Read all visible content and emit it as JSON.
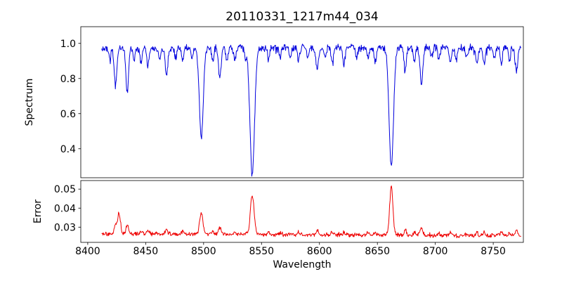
{
  "figure": {
    "title": "20110331_1217m44_034",
    "background": "#ffffff"
  },
  "chart_data": {
    "type": "line",
    "title": "20110331_1217m44_034",
    "xlabel": "Wavelength",
    "grid": false,
    "xlim": [
      8394,
      8776
    ],
    "x_range": [
      8412,
      8774
    ],
    "x_ticks": [
      8400,
      8450,
      8500,
      8550,
      8600,
      8650,
      8700,
      8750
    ],
    "x_tick_labels": [
      "8400",
      "8450",
      "8500",
      "8550",
      "8600",
      "8650",
      "8700",
      "8750"
    ],
    "panels": [
      {
        "name": "spectrum",
        "ylabel": "Spectrum",
        "color": "#0000dd",
        "ylim": [
          0.235,
          1.095
        ],
        "y_ticks": [
          0.4,
          0.6,
          0.8,
          1.0
        ],
        "y_tick_labels": [
          "0.4",
          "0.6",
          "0.8",
          "1.0"
        ],
        "continuum": 0.975,
        "noise_amplitude": 0.025,
        "line_format": [
          "center",
          "depth",
          "sigma"
        ],
        "absorption_lines": [
          [
            8419,
            0.06,
            0.9
          ],
          [
            8424,
            0.22,
            1.1
          ],
          [
            8434,
            0.26,
            1.1
          ],
          [
            8440,
            0.07,
            0.9
          ],
          [
            8446,
            0.09,
            0.9
          ],
          [
            8452,
            0.1,
            0.9
          ],
          [
            8462,
            0.06,
            0.9
          ],
          [
            8468,
            0.15,
            1.1
          ],
          [
            8476,
            0.06,
            0.9
          ],
          [
            8482,
            0.07,
            0.9
          ],
          [
            8490,
            0.05,
            0.9
          ],
          [
            8498,
            0.52,
            1.7
          ],
          [
            8508,
            0.07,
            0.9
          ],
          [
            8514,
            0.17,
            1.1
          ],
          [
            8520,
            0.08,
            0.9
          ],
          [
            8527,
            0.07,
            0.9
          ],
          [
            8536,
            0.05,
            0.9
          ],
          [
            8542,
            0.71,
            2.0
          ],
          [
            8556,
            0.06,
            0.9
          ],
          [
            8566,
            0.06,
            0.9
          ],
          [
            8575,
            0.05,
            0.9
          ],
          [
            8582,
            0.08,
            0.9
          ],
          [
            8590,
            0.06,
            0.9
          ],
          [
            8598,
            0.13,
            1.1
          ],
          [
            8605,
            0.05,
            0.9
          ],
          [
            8611,
            0.08,
            0.9
          ],
          [
            8621,
            0.09,
            0.9
          ],
          [
            8632,
            0.06,
            0.9
          ],
          [
            8642,
            0.06,
            0.9
          ],
          [
            8648,
            0.08,
            0.9
          ],
          [
            8662,
            0.67,
            1.9
          ],
          [
            8674,
            0.13,
            1.1
          ],
          [
            8682,
            0.07,
            0.9
          ],
          [
            8688,
            0.21,
            1.2
          ],
          [
            8697,
            0.05,
            0.9
          ],
          [
            8703,
            0.06,
            0.9
          ],
          [
            8713,
            0.09,
            0.9
          ],
          [
            8718,
            0.07,
            0.9
          ],
          [
            8727,
            0.05,
            0.9
          ],
          [
            8736,
            0.08,
            0.9
          ],
          [
            8742,
            0.09,
            0.9
          ],
          [
            8751,
            0.06,
            0.9
          ],
          [
            8757,
            0.09,
            0.9
          ],
          [
            8764,
            0.07,
            0.9
          ],
          [
            8770,
            0.13,
            1.1
          ]
        ]
      },
      {
        "name": "error",
        "ylabel": "Error",
        "color": "#ee0000",
        "ylim": [
          0.022,
          0.0545
        ],
        "y_ticks": [
          0.03,
          0.04,
          0.05
        ],
        "y_tick_labels": [
          "0.03",
          "0.04",
          "0.05"
        ],
        "baseline": 0.0267,
        "baseline_slope_per_angstrom": -3.5e-06,
        "noise_amplitude": 0.0013,
        "peak_format": [
          "center",
          "amplitude",
          "sigma"
        ],
        "peaks": [
          [
            8424,
            0.004,
            1.1
          ],
          [
            8427,
            0.0105,
            1.2
          ],
          [
            8434,
            0.0045,
            1.0
          ],
          [
            8446,
            0.0015,
            0.9
          ],
          [
            8452,
            0.0018,
            0.9
          ],
          [
            8468,
            0.0025,
            1.0
          ],
          [
            8482,
            0.0012,
            0.9
          ],
          [
            8498,
            0.0115,
            1.4
          ],
          [
            8508,
            0.0014,
            0.9
          ],
          [
            8514,
            0.0035,
            1.1
          ],
          [
            8527,
            0.0014,
            0.9
          ],
          [
            8542,
            0.0205,
            1.6
          ],
          [
            8556,
            0.0013,
            0.9
          ],
          [
            8566,
            0.0012,
            0.9
          ],
          [
            8582,
            0.0015,
            0.9
          ],
          [
            8598,
            0.0025,
            1.0
          ],
          [
            8611,
            0.0014,
            0.9
          ],
          [
            8621,
            0.0015,
            0.9
          ],
          [
            8642,
            0.0013,
            0.9
          ],
          [
            8648,
            0.0016,
            0.9
          ],
          [
            8662,
            0.0255,
            1.4
          ],
          [
            8674,
            0.003,
            1.0
          ],
          [
            8682,
            0.0016,
            0.9
          ],
          [
            8688,
            0.0045,
            1.1
          ],
          [
            8703,
            0.0013,
            0.9
          ],
          [
            8713,
            0.0018,
            0.9
          ],
          [
            8736,
            0.0017,
            0.9
          ],
          [
            8742,
            0.002,
            0.9
          ],
          [
            8757,
            0.0018,
            0.9
          ],
          [
            8764,
            0.0015,
            0.9
          ],
          [
            8770,
            0.0028,
            1.0
          ]
        ]
      }
    ]
  }
}
